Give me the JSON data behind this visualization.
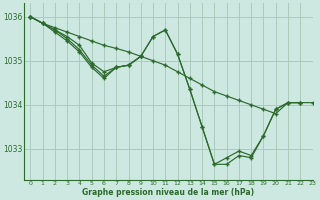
{
  "title": "Graphe pression niveau de la mer (hPa)",
  "bg_color": "#cce8e0",
  "grid_color": "#aaccbb",
  "line_color": "#2d6a2d",
  "xlim": [
    -0.5,
    23
  ],
  "ylim": [
    1032.3,
    1036.3
  ],
  "yticks": [
    1033,
    1034,
    1035,
    1036
  ],
  "xticks": [
    0,
    1,
    2,
    3,
    4,
    5,
    6,
    7,
    8,
    9,
    10,
    11,
    12,
    13,
    14,
    15,
    16,
    17,
    18,
    19,
    20,
    21,
    22,
    23
  ],
  "series": [
    {
      "x": [
        0,
        1,
        2,
        3,
        4,
        5,
        6,
        7,
        8,
        9,
        10,
        11,
        12,
        13,
        14,
        15,
        16,
        17,
        18,
        19,
        20,
        21,
        22,
        23
      ],
      "y": [
        1036.0,
        1035.85,
        1035.75,
        1035.65,
        1035.55,
        1035.45,
        1035.35,
        1035.28,
        1035.2,
        1035.1,
        1035.0,
        1034.9,
        1034.75,
        1034.6,
        1034.45,
        1034.3,
        1034.2,
        1034.1,
        1034.0,
        1033.9,
        1033.8,
        1034.05,
        1034.05,
        1034.05
      ]
    },
    {
      "x": [
        0,
        1,
        2,
        3,
        4,
        5,
        6,
        7,
        8,
        9,
        10,
        11,
        12,
        13,
        14,
        15,
        16,
        17,
        18,
        19,
        20,
        21,
        22
      ],
      "y": [
        1036.0,
        1035.85,
        1035.7,
        1035.55,
        1035.35,
        1034.95,
        1034.75,
        1034.85,
        1034.9,
        1035.1,
        1035.55,
        1035.7,
        1035.15,
        1034.35,
        1033.5,
        1032.65,
        1032.65,
        1032.85,
        1032.8,
        1033.3,
        1033.9,
        1034.05,
        1034.05
      ]
    },
    {
      "x": [
        0,
        1,
        2,
        3,
        4,
        5,
        6,
        7,
        8,
        9,
        10,
        11,
        12,
        13,
        14,
        15,
        16,
        17,
        18,
        19,
        20,
        21,
        22
      ],
      "y": [
        1036.0,
        1035.85,
        1035.7,
        1035.5,
        1035.25,
        1034.9,
        1034.65,
        1034.85,
        1034.9,
        1035.1,
        1035.55,
        1035.7,
        1035.15,
        1034.35,
        1033.5,
        1032.65,
        1032.8,
        1032.95,
        1032.85,
        1033.3,
        1033.9,
        1034.05,
        1034.05
      ]
    },
    {
      "x": [
        0,
        1,
        2,
        3,
        4,
        5,
        6,
        7,
        8,
        9
      ],
      "y": [
        1036.0,
        1035.85,
        1035.65,
        1035.45,
        1035.2,
        1034.85,
        1034.6,
        1034.85,
        1034.9,
        1035.1
      ]
    }
  ]
}
